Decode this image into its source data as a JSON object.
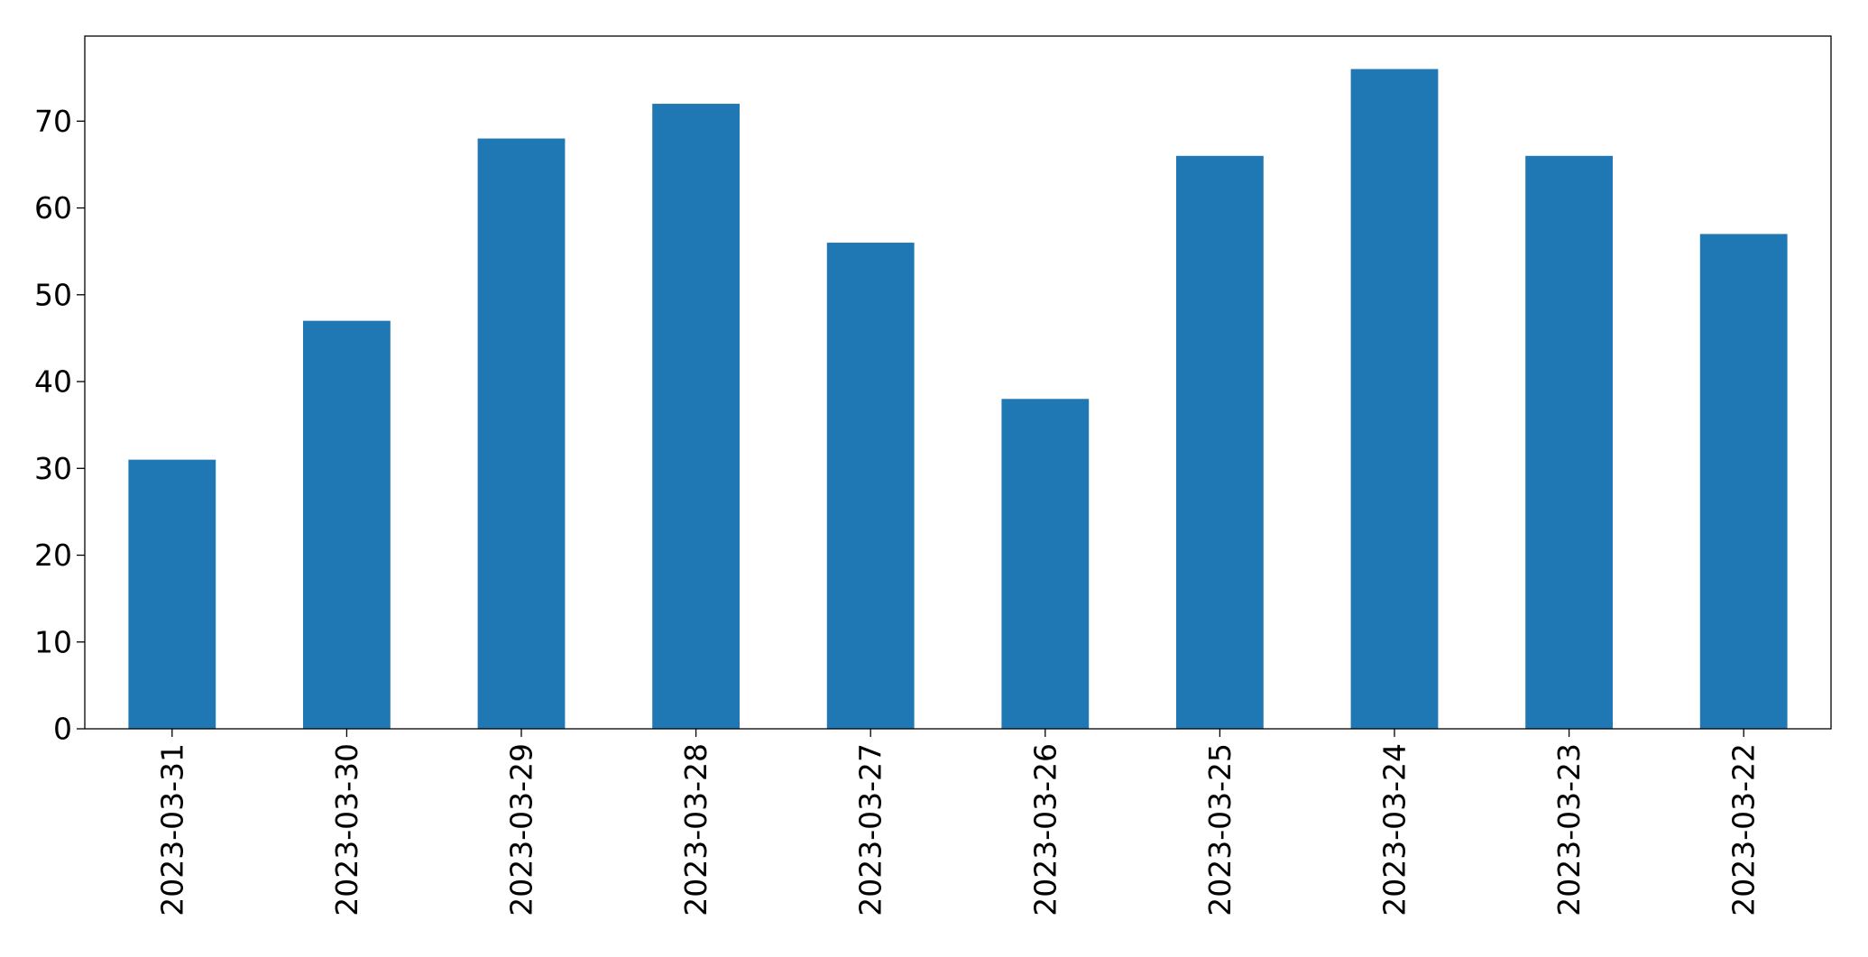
{
  "chart_data": {
    "type": "bar",
    "categories": [
      "2023-03-31",
      "2023-03-30",
      "2023-03-29",
      "2023-03-28",
      "2023-03-27",
      "2023-03-26",
      "2023-03-25",
      "2023-03-24",
      "2023-03-23",
      "2023-03-22"
    ],
    "values": [
      31,
      47,
      68,
      72,
      56,
      38,
      66,
      76,
      66,
      57
    ],
    "color": "#1f77b4",
    "ylim": [
      0,
      79.8
    ],
    "yticks": [
      0,
      10,
      20,
      30,
      40,
      50,
      60,
      70
    ],
    "grid": false
  }
}
